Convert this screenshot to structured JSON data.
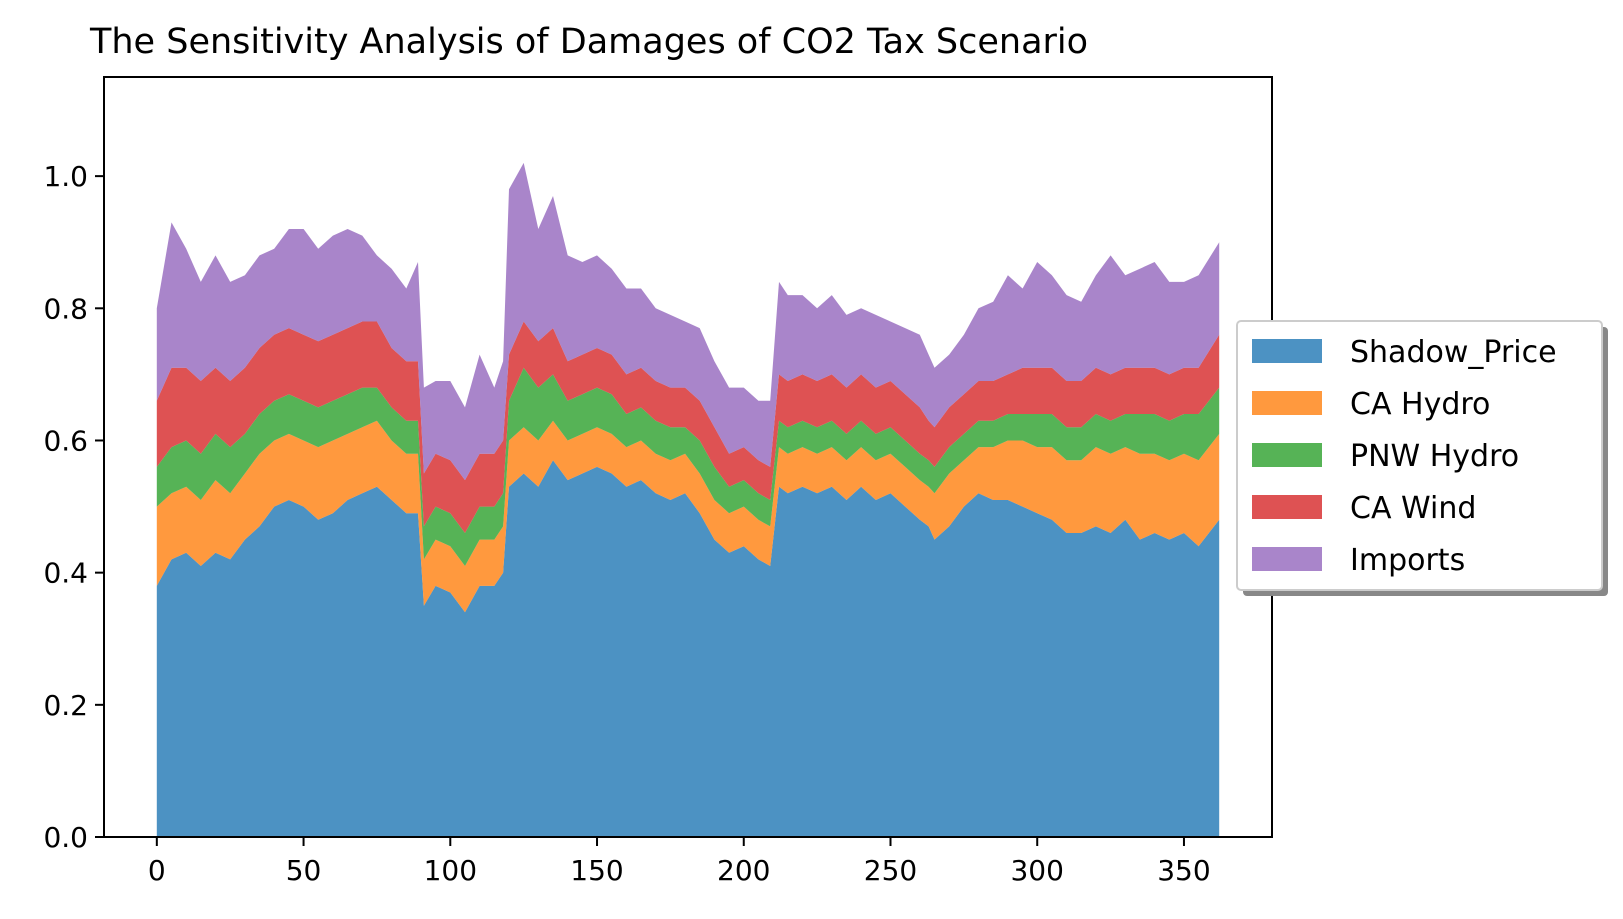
{
  "chart_data": {
    "type": "area",
    "stacked": true,
    "title": "The Sensitivity Analysis of Damages of CO2 Tax Scenario",
    "xlabel": "",
    "ylabel": "",
    "xlim": [
      -18,
      380
    ],
    "ylim": [
      0,
      1.15
    ],
    "x_ticks": [
      0,
      50,
      100,
      150,
      200,
      250,
      300,
      350
    ],
    "y_ticks": [
      0.0,
      0.2,
      0.4,
      0.6,
      0.8,
      1.0
    ],
    "x_tick_labels": [
      "0",
      "50",
      "100",
      "150",
      "200",
      "250",
      "300",
      "350"
    ],
    "y_tick_labels": [
      "0.0",
      "0.2",
      "0.4",
      "0.6",
      "0.8",
      "1.0"
    ],
    "grid": false,
    "legend_position": "right (outside, center)",
    "x": [
      0,
      5,
      10,
      15,
      20,
      25,
      30,
      35,
      40,
      45,
      50,
      55,
      60,
      65,
      70,
      75,
      80,
      85,
      89,
      91,
      95,
      100,
      105,
      110,
      115,
      118,
      120,
      125,
      130,
      135,
      140,
      145,
      150,
      155,
      160,
      165,
      170,
      175,
      180,
      185,
      190,
      195,
      200,
      205,
      209,
      212,
      215,
      220,
      225,
      230,
      235,
      240,
      245,
      250,
      255,
      260,
      263,
      265,
      270,
      275,
      280,
      285,
      290,
      295,
      300,
      305,
      310,
      315,
      320,
      325,
      330,
      335,
      340,
      345,
      350,
      355,
      362
    ],
    "series": [
      {
        "name": "Shadow_Price",
        "color": "#1f77b4",
        "values": [
          0.38,
          0.42,
          0.43,
          0.41,
          0.43,
          0.42,
          0.45,
          0.47,
          0.5,
          0.51,
          0.5,
          0.48,
          0.49,
          0.51,
          0.52,
          0.53,
          0.51,
          0.49,
          0.49,
          0.35,
          0.38,
          0.37,
          0.34,
          0.38,
          0.38,
          0.4,
          0.53,
          0.55,
          0.53,
          0.57,
          0.54,
          0.55,
          0.56,
          0.55,
          0.53,
          0.54,
          0.52,
          0.51,
          0.52,
          0.49,
          0.45,
          0.43,
          0.44,
          0.42,
          0.41,
          0.53,
          0.52,
          0.53,
          0.52,
          0.53,
          0.51,
          0.53,
          0.51,
          0.52,
          0.5,
          0.48,
          0.47,
          0.45,
          0.47,
          0.5,
          0.52,
          0.51,
          0.51,
          0.5,
          0.49,
          0.48,
          0.46,
          0.46,
          0.47,
          0.46,
          0.48,
          0.45,
          0.46,
          0.45,
          0.46,
          0.44,
          0.48
        ]
      },
      {
        "name": "CA Hydro",
        "color": "#ff7f0e",
        "values": [
          0.12,
          0.1,
          0.1,
          0.1,
          0.11,
          0.1,
          0.1,
          0.11,
          0.1,
          0.1,
          0.1,
          0.11,
          0.11,
          0.1,
          0.1,
          0.1,
          0.09,
          0.09,
          0.09,
          0.07,
          0.07,
          0.07,
          0.07,
          0.07,
          0.07,
          0.07,
          0.07,
          0.07,
          0.07,
          0.06,
          0.06,
          0.06,
          0.06,
          0.06,
          0.06,
          0.06,
          0.06,
          0.06,
          0.06,
          0.06,
          0.06,
          0.06,
          0.06,
          0.06,
          0.06,
          0.06,
          0.06,
          0.06,
          0.06,
          0.06,
          0.06,
          0.06,
          0.06,
          0.06,
          0.06,
          0.06,
          0.06,
          0.07,
          0.08,
          0.07,
          0.07,
          0.08,
          0.09,
          0.1,
          0.1,
          0.11,
          0.11,
          0.11,
          0.12,
          0.12,
          0.11,
          0.13,
          0.12,
          0.12,
          0.12,
          0.13,
          0.13
        ]
      },
      {
        "name": "PNW Hydro",
        "color": "#2ca02c",
        "values": [
          0.06,
          0.07,
          0.07,
          0.07,
          0.07,
          0.07,
          0.06,
          0.06,
          0.06,
          0.06,
          0.06,
          0.06,
          0.06,
          0.06,
          0.06,
          0.05,
          0.05,
          0.05,
          0.05,
          0.05,
          0.05,
          0.05,
          0.05,
          0.05,
          0.05,
          0.05,
          0.06,
          0.09,
          0.08,
          0.07,
          0.06,
          0.06,
          0.06,
          0.06,
          0.05,
          0.05,
          0.05,
          0.05,
          0.04,
          0.05,
          0.05,
          0.04,
          0.04,
          0.04,
          0.04,
          0.04,
          0.04,
          0.04,
          0.04,
          0.04,
          0.04,
          0.04,
          0.04,
          0.04,
          0.04,
          0.04,
          0.04,
          0.04,
          0.04,
          0.04,
          0.04,
          0.04,
          0.04,
          0.04,
          0.05,
          0.05,
          0.05,
          0.05,
          0.05,
          0.05,
          0.05,
          0.06,
          0.06,
          0.06,
          0.06,
          0.07,
          0.07
        ]
      },
      {
        "name": "CA Wind",
        "color": "#d62728",
        "values": [
          0.1,
          0.12,
          0.11,
          0.11,
          0.1,
          0.1,
          0.1,
          0.1,
          0.1,
          0.1,
          0.1,
          0.1,
          0.1,
          0.1,
          0.1,
          0.1,
          0.09,
          0.09,
          0.09,
          0.08,
          0.08,
          0.08,
          0.08,
          0.08,
          0.08,
          0.08,
          0.07,
          0.07,
          0.07,
          0.07,
          0.06,
          0.06,
          0.06,
          0.06,
          0.06,
          0.06,
          0.06,
          0.06,
          0.06,
          0.06,
          0.06,
          0.05,
          0.05,
          0.05,
          0.05,
          0.07,
          0.07,
          0.07,
          0.07,
          0.07,
          0.07,
          0.07,
          0.07,
          0.07,
          0.07,
          0.07,
          0.06,
          0.06,
          0.06,
          0.06,
          0.06,
          0.06,
          0.06,
          0.07,
          0.07,
          0.07,
          0.07,
          0.07,
          0.07,
          0.07,
          0.07,
          0.07,
          0.07,
          0.07,
          0.07,
          0.07,
          0.08
        ]
      },
      {
        "name": "Imports",
        "color": "#9467bd",
        "values": [
          0.14,
          0.22,
          0.18,
          0.15,
          0.17,
          0.15,
          0.14,
          0.14,
          0.13,
          0.15,
          0.16,
          0.14,
          0.15,
          0.15,
          0.13,
          0.1,
          0.12,
          0.11,
          0.15,
          0.13,
          0.11,
          0.12,
          0.11,
          0.15,
          0.1,
          0.12,
          0.25,
          0.24,
          0.17,
          0.2,
          0.16,
          0.14,
          0.14,
          0.13,
          0.13,
          0.12,
          0.11,
          0.11,
          0.1,
          0.11,
          0.1,
          0.1,
          0.09,
          0.09,
          0.1,
          0.14,
          0.13,
          0.12,
          0.11,
          0.12,
          0.11,
          0.1,
          0.11,
          0.09,
          0.1,
          0.11,
          0.1,
          0.09,
          0.08,
          0.09,
          0.11,
          0.12,
          0.15,
          0.12,
          0.16,
          0.14,
          0.13,
          0.12,
          0.14,
          0.18,
          0.14,
          0.15,
          0.16,
          0.14,
          0.13,
          0.14,
          0.14
        ]
      }
    ]
  }
}
